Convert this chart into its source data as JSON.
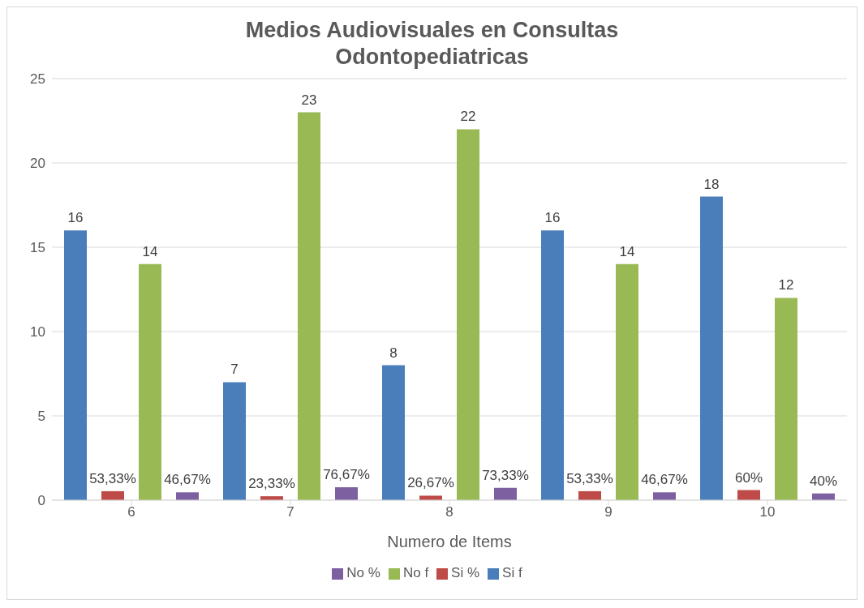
{
  "chart_data": {
    "type": "bar",
    "title": "Medios Audiovisuales en Consultas Odontopediatricas",
    "xlabel": "Numero de Items",
    "categories": [
      "6",
      "7",
      "8",
      "9",
      "10"
    ],
    "series": [
      {
        "name": "Si f",
        "color": "#4a7ebb",
        "values": [
          16,
          7,
          8,
          16,
          18
        ],
        "value_labels": [
          "16",
          "7",
          "8",
          "16",
          "18"
        ]
      },
      {
        "name": "Si %",
        "color": "#be4b48",
        "values": [
          0.5333,
          0.2333,
          0.2667,
          0.5333,
          0.6
        ],
        "value_labels": [
          "53,33%",
          "23,33%",
          "26,67%",
          "53,33%",
          "60%"
        ]
      },
      {
        "name": "No f",
        "color": "#98b954",
        "values": [
          14,
          23,
          22,
          14,
          12
        ],
        "value_labels": [
          "14",
          "23",
          "22",
          "14",
          "12"
        ]
      },
      {
        "name": "No %",
        "color": "#7d60a0",
        "values": [
          0.4667,
          0.7667,
          0.7333,
          0.4667,
          0.4
        ],
        "value_labels": [
          "46,67%",
          "76,67%",
          "73,33%",
          "46,67%",
          "40%"
        ]
      }
    ],
    "ylim": [
      0,
      25
    ],
    "yticks": [
      0,
      5,
      10,
      15,
      20,
      25
    ],
    "grid": "y",
    "legend": "bottom"
  }
}
